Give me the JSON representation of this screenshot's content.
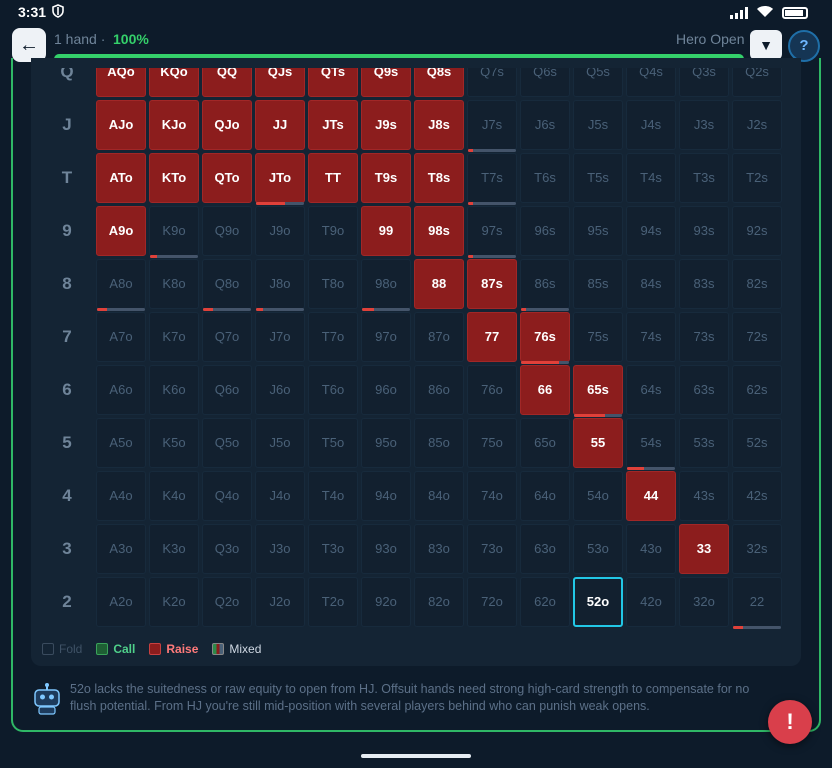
{
  "status": {
    "time": "3:31",
    "icons": [
      "shield-icon",
      "signal-icon",
      "wifi-icon",
      "battery-icon"
    ]
  },
  "header": {
    "back_icon": "arrow-left-icon",
    "hand_count": "1 hand ·",
    "percent": "100%",
    "progress": 1.0,
    "mode": "Hero Open",
    "dropdown_icon": "▼",
    "help": "?"
  },
  "grid": {
    "row_labels": [
      "Q",
      "J",
      "T",
      "9",
      "8",
      "7",
      "6",
      "5",
      "4",
      "3",
      "2"
    ],
    "rows": [
      [
        {
          "t": "AQo",
          "a": "raise"
        },
        {
          "t": "KQo",
          "a": "raise"
        },
        {
          "t": "QQ",
          "a": "raise"
        },
        {
          "t": "QJs",
          "a": "raise"
        },
        {
          "t": "QTs",
          "a": "raise"
        },
        {
          "t": "Q9s",
          "a": "raise"
        },
        {
          "t": "Q8s",
          "a": "raise"
        },
        {
          "t": "Q7s",
          "a": "fold"
        },
        {
          "t": "Q6s",
          "a": "fold"
        },
        {
          "t": "Q5s",
          "a": "fold"
        },
        {
          "t": "Q4s",
          "a": "fold"
        },
        {
          "t": "Q3s",
          "a": "fold"
        },
        {
          "t": "Q2s",
          "a": "fold"
        }
      ],
      [
        {
          "t": "AJo",
          "a": "raise"
        },
        {
          "t": "KJo",
          "a": "raise"
        },
        {
          "t": "QJo",
          "a": "raise"
        },
        {
          "t": "JJ",
          "a": "raise"
        },
        {
          "t": "JTs",
          "a": "raise"
        },
        {
          "t": "J9s",
          "a": "raise"
        },
        {
          "t": "J8s",
          "a": "raise"
        },
        {
          "t": "J7s",
          "a": "fold",
          "mix": 0.1
        },
        {
          "t": "J6s",
          "a": "fold"
        },
        {
          "t": "J5s",
          "a": "fold"
        },
        {
          "t": "J4s",
          "a": "fold"
        },
        {
          "t": "J3s",
          "a": "fold"
        },
        {
          "t": "J2s",
          "a": "fold"
        }
      ],
      [
        {
          "t": "ATo",
          "a": "raise"
        },
        {
          "t": "KTo",
          "a": "raise"
        },
        {
          "t": "QTo",
          "a": "raise"
        },
        {
          "t": "JTo",
          "a": "raise",
          "mix": 0.6
        },
        {
          "t": "TT",
          "a": "raise"
        },
        {
          "t": "T9s",
          "a": "raise"
        },
        {
          "t": "T8s",
          "a": "raise"
        },
        {
          "t": "T7s",
          "a": "fold",
          "mix": 0.1
        },
        {
          "t": "T6s",
          "a": "fold"
        },
        {
          "t": "T5s",
          "a": "fold"
        },
        {
          "t": "T4s",
          "a": "fold"
        },
        {
          "t": "T3s",
          "a": "fold"
        },
        {
          "t": "T2s",
          "a": "fold"
        }
      ],
      [
        {
          "t": "A9o",
          "a": "raise"
        },
        {
          "t": "K9o",
          "a": "fold",
          "mix": 0.15
        },
        {
          "t": "Q9o",
          "a": "fold"
        },
        {
          "t": "J9o",
          "a": "fold"
        },
        {
          "t": "T9o",
          "a": "fold"
        },
        {
          "t": "99",
          "a": "raise"
        },
        {
          "t": "98s",
          "a": "raise"
        },
        {
          "t": "97s",
          "a": "fold",
          "mix": 0.1
        },
        {
          "t": "96s",
          "a": "fold"
        },
        {
          "t": "95s",
          "a": "fold"
        },
        {
          "t": "94s",
          "a": "fold"
        },
        {
          "t": "93s",
          "a": "fold"
        },
        {
          "t": "92s",
          "a": "fold"
        }
      ],
      [
        {
          "t": "A8o",
          "a": "fold",
          "mix": 0.2
        },
        {
          "t": "K8o",
          "a": "fold"
        },
        {
          "t": "Q8o",
          "a": "fold",
          "mix": 0.2
        },
        {
          "t": "J8o",
          "a": "fold",
          "mix": 0.15
        },
        {
          "t": "T8o",
          "a": "fold"
        },
        {
          "t": "98o",
          "a": "fold",
          "mix": 0.25
        },
        {
          "t": "88",
          "a": "raise"
        },
        {
          "t": "87s",
          "a": "raise"
        },
        {
          "t": "86s",
          "a": "fold",
          "mix": 0.1
        },
        {
          "t": "85s",
          "a": "fold"
        },
        {
          "t": "84s",
          "a": "fold"
        },
        {
          "t": "83s",
          "a": "fold"
        },
        {
          "t": "82s",
          "a": "fold"
        }
      ],
      [
        {
          "t": "A7o",
          "a": "fold"
        },
        {
          "t": "K7o",
          "a": "fold"
        },
        {
          "t": "Q7o",
          "a": "fold"
        },
        {
          "t": "J7o",
          "a": "fold"
        },
        {
          "t": "T7o",
          "a": "fold"
        },
        {
          "t": "97o",
          "a": "fold"
        },
        {
          "t": "87o",
          "a": "fold"
        },
        {
          "t": "77",
          "a": "raise"
        },
        {
          "t": "76s",
          "a": "raise",
          "mix": 0.8
        },
        {
          "t": "75s",
          "a": "fold"
        },
        {
          "t": "74s",
          "a": "fold"
        },
        {
          "t": "73s",
          "a": "fold"
        },
        {
          "t": "72s",
          "a": "fold"
        }
      ],
      [
        {
          "t": "A6o",
          "a": "fold"
        },
        {
          "t": "K6o",
          "a": "fold"
        },
        {
          "t": "Q6o",
          "a": "fold"
        },
        {
          "t": "J6o",
          "a": "fold"
        },
        {
          "t": "T6o",
          "a": "fold"
        },
        {
          "t": "96o",
          "a": "fold"
        },
        {
          "t": "86o",
          "a": "fold"
        },
        {
          "t": "76o",
          "a": "fold"
        },
        {
          "t": "66",
          "a": "raise"
        },
        {
          "t": "65s",
          "a": "raise",
          "mix": 0.65
        },
        {
          "t": "64s",
          "a": "fold"
        },
        {
          "t": "63s",
          "a": "fold"
        },
        {
          "t": "62s",
          "a": "fold"
        }
      ],
      [
        {
          "t": "A5o",
          "a": "fold"
        },
        {
          "t": "K5o",
          "a": "fold"
        },
        {
          "t": "Q5o",
          "a": "fold"
        },
        {
          "t": "J5o",
          "a": "fold"
        },
        {
          "t": "T5o",
          "a": "fold"
        },
        {
          "t": "95o",
          "a": "fold"
        },
        {
          "t": "85o",
          "a": "fold"
        },
        {
          "t": "75o",
          "a": "fold"
        },
        {
          "t": "65o",
          "a": "fold"
        },
        {
          "t": "55",
          "a": "raise"
        },
        {
          "t": "54s",
          "a": "fold",
          "mix": 0.35
        },
        {
          "t": "53s",
          "a": "fold"
        },
        {
          "t": "52s",
          "a": "fold"
        }
      ],
      [
        {
          "t": "A4o",
          "a": "fold"
        },
        {
          "t": "K4o",
          "a": "fold"
        },
        {
          "t": "Q4o",
          "a": "fold"
        },
        {
          "t": "J4o",
          "a": "fold"
        },
        {
          "t": "T4o",
          "a": "fold"
        },
        {
          "t": "94o",
          "a": "fold"
        },
        {
          "t": "84o",
          "a": "fold"
        },
        {
          "t": "74o",
          "a": "fold"
        },
        {
          "t": "64o",
          "a": "fold"
        },
        {
          "t": "54o",
          "a": "fold"
        },
        {
          "t": "44",
          "a": "raise"
        },
        {
          "t": "43s",
          "a": "fold"
        },
        {
          "t": "42s",
          "a": "fold"
        }
      ],
      [
        {
          "t": "A3o",
          "a": "fold"
        },
        {
          "t": "K3o",
          "a": "fold"
        },
        {
          "t": "Q3o",
          "a": "fold"
        },
        {
          "t": "J3o",
          "a": "fold"
        },
        {
          "t": "T3o",
          "a": "fold"
        },
        {
          "t": "93o",
          "a": "fold"
        },
        {
          "t": "83o",
          "a": "fold"
        },
        {
          "t": "73o",
          "a": "fold"
        },
        {
          "t": "63o",
          "a": "fold"
        },
        {
          "t": "53o",
          "a": "fold"
        },
        {
          "t": "43o",
          "a": "fold"
        },
        {
          "t": "33",
          "a": "raise"
        },
        {
          "t": "32s",
          "a": "fold"
        }
      ],
      [
        {
          "t": "A2o",
          "a": "fold"
        },
        {
          "t": "K2o",
          "a": "fold"
        },
        {
          "t": "Q2o",
          "a": "fold"
        },
        {
          "t": "J2o",
          "a": "fold"
        },
        {
          "t": "T2o",
          "a": "fold"
        },
        {
          "t": "92o",
          "a": "fold"
        },
        {
          "t": "82o",
          "a": "fold"
        },
        {
          "t": "72o",
          "a": "fold"
        },
        {
          "t": "62o",
          "a": "fold"
        },
        {
          "t": "52o",
          "a": "fold",
          "current": true
        },
        {
          "t": "42o",
          "a": "fold"
        },
        {
          "t": "32o",
          "a": "fold"
        },
        {
          "t": "22",
          "a": "fold",
          "mix": 0.2
        }
      ]
    ]
  },
  "legend": {
    "fold": "Fold",
    "call": "Call",
    "raise": "Raise",
    "mixed": "Mixed"
  },
  "explanation": {
    "icon": "robot-icon",
    "text": "52o lacks the suitedness or raw equity to open from HJ. Offsuit hands need strong high-card strength to compensate for no flush potential. From HJ you're still mid-position with several players behind who can punish weak opens."
  },
  "report_button": "!",
  "colors": {
    "accent_green": "#34d06a",
    "raise": "#8c1d1d",
    "highlight": "#22c7e6",
    "alert": "#d93f4b"
  }
}
